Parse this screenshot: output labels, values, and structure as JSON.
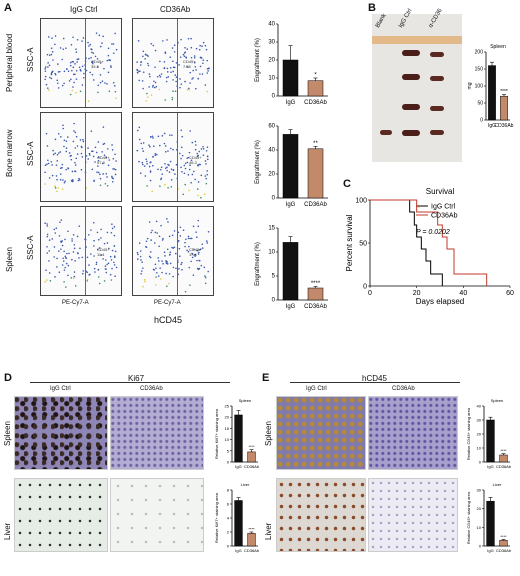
{
  "panels": {
    "A": "A",
    "B": "B",
    "C": "C",
    "D": "D",
    "E": "E"
  },
  "panelA": {
    "col_headers": [
      "IgG Ctrl",
      "CD36Ab"
    ],
    "rows": [
      {
        "label": "Peripheral blood",
        "gates": [
          "CD45+\n35.9",
          "CD45+\n7.38"
        ]
      },
      {
        "label": "Bone marrow",
        "gates": [
          "CD45+\n57.8",
          "CD45+\n46.3"
        ]
      },
      {
        "label": "Spleen",
        "gates": [
          "CD45+\n11.4",
          "CD45+\n1.94"
        ]
      }
    ],
    "flow_ylabel": "SSC-A",
    "flow_xlabel": "PE-Cy7-A",
    "bottom_label": "hCD45",
    "xticks": [
      "0",
      "10³",
      "10⁴",
      "10⁵"
    ],
    "yticks": [
      "250K",
      "200K",
      "150K",
      "100K",
      "50K",
      "0"
    ]
  },
  "panelB": {
    "photo_labels": [
      "Blank",
      "IgG Ctrl",
      "α-CD36"
    ],
    "chart_title": "Spleen"
  },
  "panelC": {
    "title": "Survival",
    "pvalue": "P = 0.0202"
  },
  "panelD": {
    "title": "Ki67",
    "col_headers": [
      "IgG Ctrl",
      "CD36Ab"
    ],
    "row_labels": [
      "Spleen",
      "Liver"
    ]
  },
  "panelE": {
    "title": "hCD45",
    "col_headers": [
      "IgG Ctrl",
      "CD36Ab"
    ],
    "row_labels": [
      "Spleen",
      "Liver"
    ]
  },
  "chart_data": [
    {
      "id": "A-pb",
      "type": "bar",
      "categories": [
        "IgG",
        "CD36Ab"
      ],
      "values": [
        20,
        8.5
      ],
      "errors": [
        8,
        1.5
      ],
      "ylabel": "Engraftment (%)",
      "ylim": [
        0,
        40
      ],
      "yticks": [
        0,
        10,
        20,
        30,
        40
      ],
      "sig": "*"
    },
    {
      "id": "A-bm",
      "type": "bar",
      "categories": [
        "IgG",
        "CD36Ab"
      ],
      "values": [
        53,
        41
      ],
      "errors": [
        4,
        2
      ],
      "ylabel": "Engraftment (%)",
      "ylim": [
        0,
        60
      ],
      "yticks": [
        0,
        20,
        40,
        60
      ],
      "sig": "**"
    },
    {
      "id": "A-sp",
      "type": "bar",
      "categories": [
        "IgG",
        "CD36Ab"
      ],
      "values": [
        12,
        2.5
      ],
      "errors": [
        1.2,
        0.3
      ],
      "ylabel": "Engraftment (%)",
      "ylim": [
        0,
        15
      ],
      "yticks": [
        0,
        5,
        10,
        15
      ],
      "sig": "****"
    },
    {
      "id": "B-spleen",
      "type": "bar",
      "title": "Spleen",
      "categories": [
        "IgG",
        "CD36Ab"
      ],
      "values": [
        160,
        70
      ],
      "errors": [
        10,
        5
      ],
      "ylabel": "mg",
      "ylim": [
        0,
        200
      ],
      "yticks": [
        0,
        50,
        100,
        150,
        200
      ],
      "sig": "****"
    },
    {
      "id": "C-survival",
      "type": "line",
      "title": "Survival",
      "xlabel": "Days elapsed",
      "ylabel": "Percent survival",
      "xlim": [
        0,
        60
      ],
      "ylim": [
        0,
        100
      ],
      "xticks": [
        0,
        20,
        40,
        60
      ],
      "yticks": [
        0,
        50,
        100
      ],
      "series": [
        {
          "name": "IgG Ctrl",
          "color": "#000000",
          "x": [
            0,
            17,
            17,
            19,
            19,
            20,
            20,
            22,
            22,
            24,
            24,
            26,
            26,
            31,
            31
          ],
          "y": [
            100,
            100,
            86,
            86,
            71,
            71,
            57,
            57,
            43,
            43,
            29,
            29,
            14,
            14,
            0
          ]
        },
        {
          "name": "CD36Ab",
          "color": "#c0392b",
          "x": [
            0,
            20,
            20,
            29,
            29,
            31,
            31,
            33,
            33,
            36,
            36,
            50,
            50
          ],
          "y": [
            100,
            100,
            86,
            86,
            71,
            71,
            57,
            57,
            43,
            43,
            14,
            14,
            0
          ]
        }
      ],
      "sig": "*"
    },
    {
      "id": "D-spleen",
      "type": "bar",
      "title": "Spleen",
      "categories": [
        "IgG",
        "CD36Ab"
      ],
      "values": [
        21,
        4.5
      ],
      "errors": [
        2,
        1
      ],
      "ylabel": "Relative Ki67+ staining area",
      "ylim": [
        0,
        25
      ],
      "yticks": [
        0,
        5,
        10,
        15,
        20,
        25
      ],
      "sig": "****"
    },
    {
      "id": "D-liver",
      "type": "bar",
      "title": "Liver",
      "categories": [
        "IgG",
        "CD36Ab"
      ],
      "values": [
        6.5,
        1.8
      ],
      "errors": [
        0.4,
        0.2
      ],
      "ylabel": "Relative Ki67+ staining area",
      "ylim": [
        0,
        8
      ],
      "yticks": [
        0,
        2,
        4,
        6,
        8
      ],
      "sig": "****"
    },
    {
      "id": "E-spleen",
      "type": "bar",
      "title": "Spleen",
      "categories": [
        "IgG",
        "CD36Ab"
      ],
      "values": [
        30,
        5
      ],
      "errors": [
        2,
        1
      ],
      "ylabel": "Relative CD45+ staining area",
      "ylim": [
        0,
        40
      ],
      "yticks": [
        0,
        10,
        20,
        30,
        40
      ],
      "sig": "****"
    },
    {
      "id": "E-liver",
      "type": "bar",
      "title": "Liver",
      "categories": [
        "IgG",
        "CD36Ab"
      ],
      "values": [
        24,
        3
      ],
      "errors": [
        2,
        0.5
      ],
      "ylabel": "Relative CD45+ staining area",
      "ylim": [
        0,
        30
      ],
      "yticks": [
        0,
        10,
        20,
        30
      ],
      "sig": "****"
    }
  ]
}
